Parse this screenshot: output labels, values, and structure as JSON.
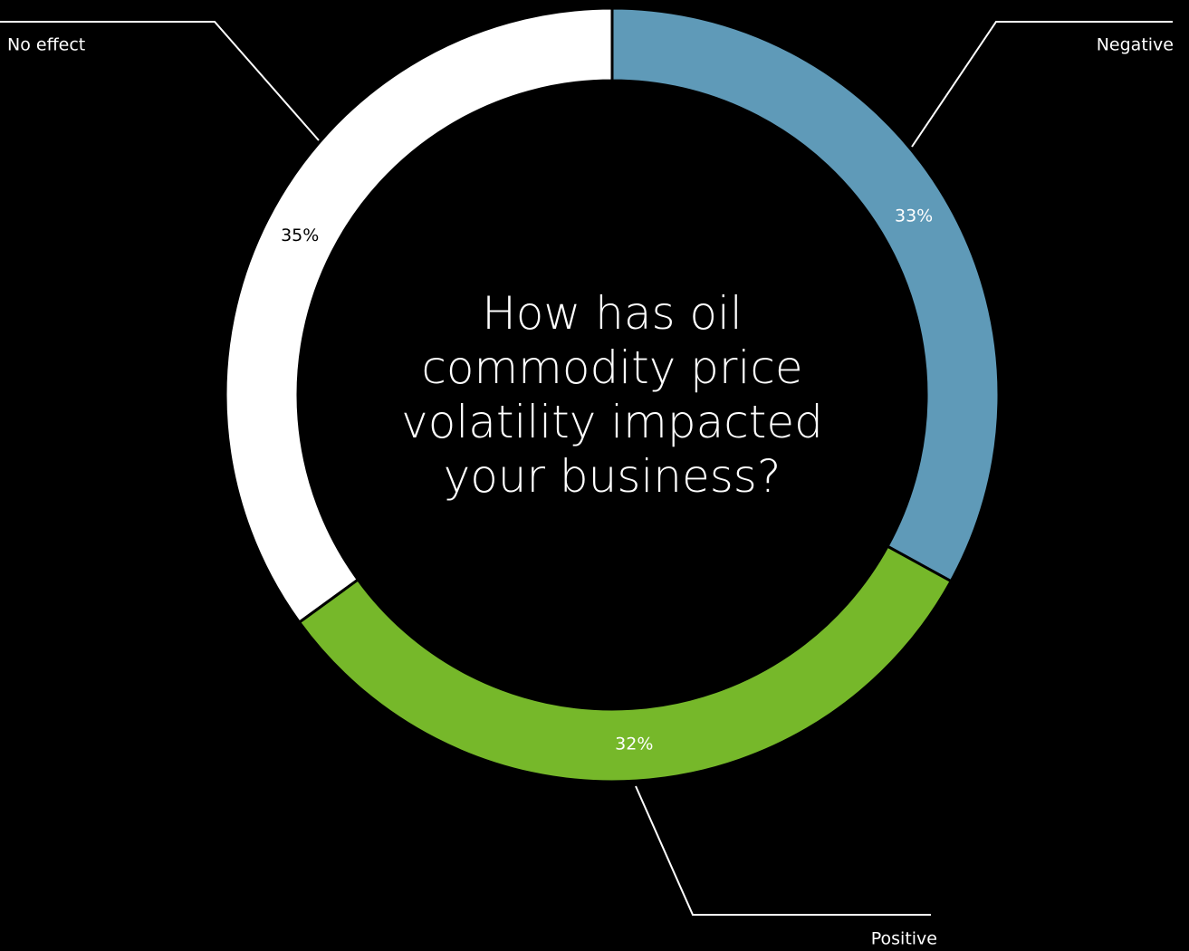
{
  "chart_data": {
    "type": "donut",
    "title": "How has oil commodity price volatility impacted your business?",
    "categories": [
      "Negative",
      "Positive",
      "No effect"
    ],
    "values": [
      33,
      32,
      35
    ],
    "value_labels": [
      "33%",
      "32%",
      "35%"
    ],
    "colors": [
      "#5f9ab8",
      "#76b82a",
      "#ffffff"
    ]
  }
}
